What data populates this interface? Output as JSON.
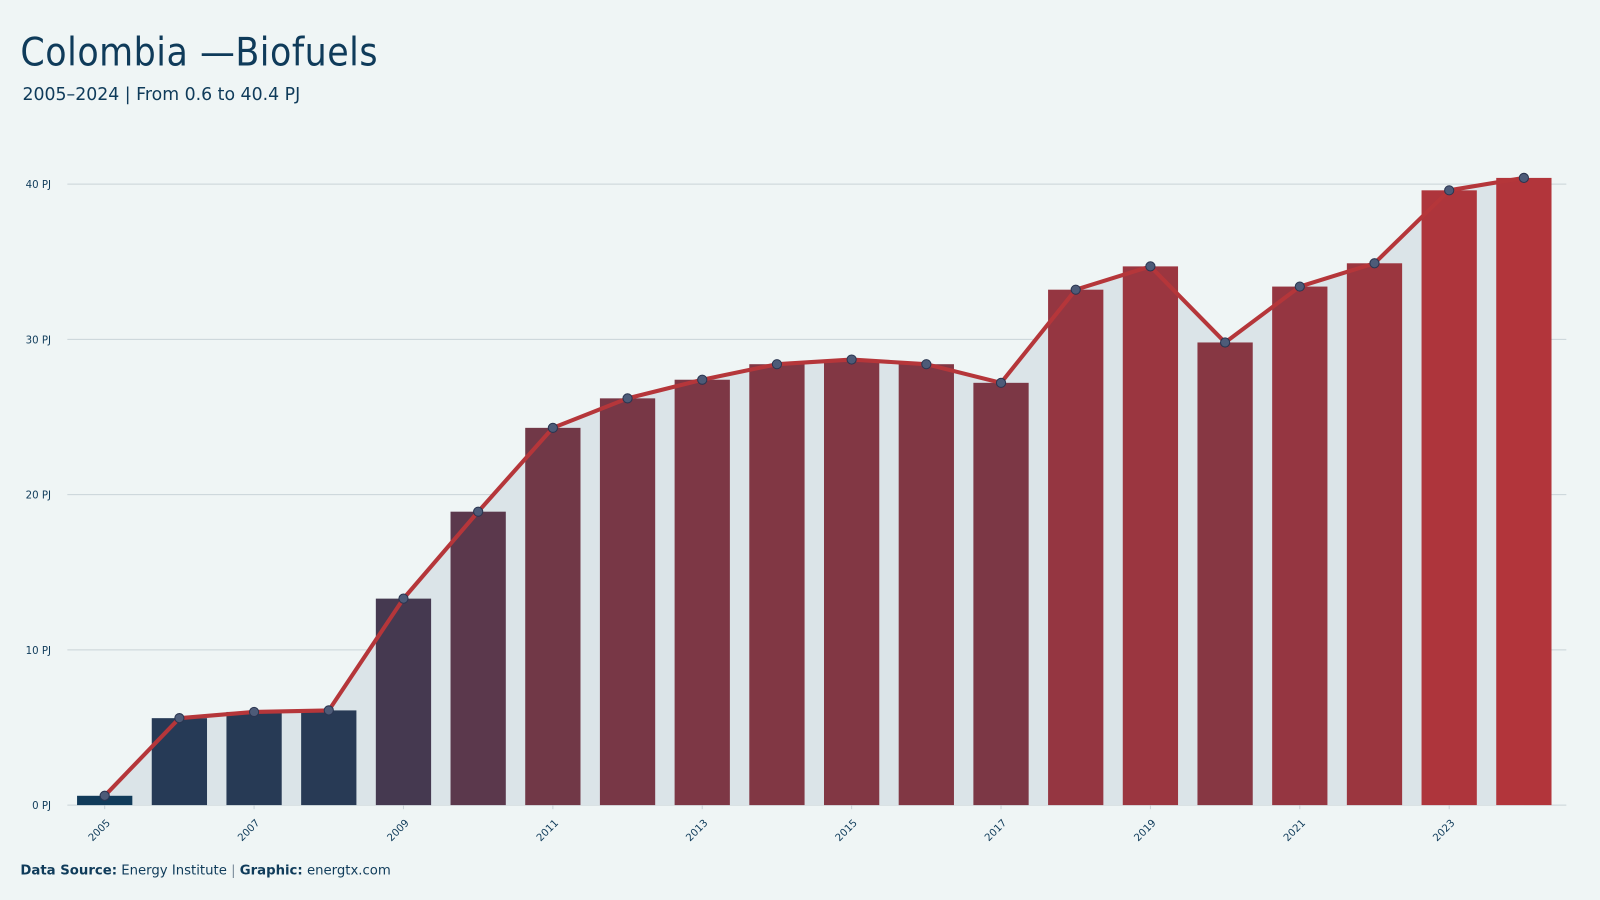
{
  "chart_data": {
    "type": "bar-line",
    "title": "Colombia —Biofuels",
    "subtitle": "2005–2024 | From 0.6 to 40.4 PJ",
    "x": [
      2005,
      2006,
      2007,
      2008,
      2009,
      2010,
      2011,
      2012,
      2013,
      2014,
      2015,
      2016,
      2017,
      2018,
      2019,
      2020,
      2021,
      2022,
      2023,
      2024
    ],
    "values": [
      0.6,
      5.6,
      6.0,
      6.1,
      13.3,
      18.9,
      24.3,
      26.2,
      27.4,
      28.4,
      28.7,
      28.4,
      27.2,
      33.2,
      34.7,
      29.8,
      33.4,
      34.9,
      39.6,
      40.4
    ],
    "xlim": [
      2004.5,
      2024.5
    ],
    "xticks": [
      2005,
      2007,
      2009,
      2011,
      2013,
      2015,
      2017,
      2019,
      2021,
      2023
    ],
    "ylim": [
      0,
      42
    ],
    "yticks": [
      {
        "value": 0,
        "label": "0 PJ"
      },
      {
        "value": 10,
        "label": "10 PJ"
      },
      {
        "value": 20,
        "label": "20 PJ"
      },
      {
        "value": 30,
        "label": "30 PJ"
      },
      {
        "value": 40,
        "label": "40 PJ"
      }
    ],
    "grid": true,
    "color_scale": [
      "#0f3b5a",
      "#b8353a"
    ],
    "line_color": "#b5363a",
    "marker_color": "#4d5b78",
    "area_color": "#dbe4e8",
    "footer": {
      "source_label": "Data Source:",
      "source": "Energy Institute",
      "separator": "|",
      "graphic_label": "Graphic:",
      "graphic": "energtx.com"
    }
  }
}
